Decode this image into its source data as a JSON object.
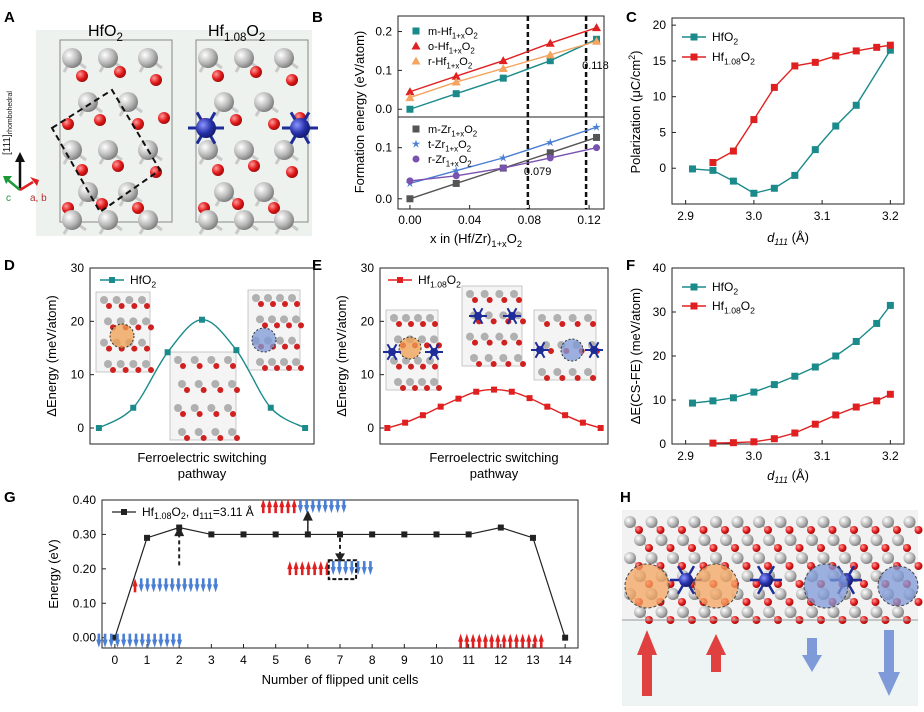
{
  "colors": {
    "teal": "#1a8a8a",
    "red": "#e02020",
    "orange": "#f4a460",
    "gray": "#555555",
    "blue": "#4a7fd4",
    "purple": "#7a52b0",
    "navy": "#1e2c9a",
    "rhfo": "#f0a050",
    "dash": "#000000"
  },
  "panel_letters": {
    "a": "A",
    "b": "B",
    "c": "C",
    "d": "D",
    "e": "E",
    "f": "F",
    "g": "G",
    "h": "H"
  },
  "panel_a": {
    "title_left": "HfO2",
    "title_right": "Hf1.08O2",
    "axis_label": "[111]rhombohedral",
    "axis_c": "c",
    "axis_ab": "a, b"
  },
  "panel_d_legend": "HfO2",
  "panel_e_legend": "Hf1.08O2",
  "chart_data": [
    {
      "id": "B",
      "type": "scatter",
      "xlabel": "x in (Hf/Zr)1+xO2",
      "ylabel": "Formation energy (eV/atom)",
      "x_ticks": [
        "0.00",
        "0.04",
        "0.08",
        "0.12"
      ],
      "top_subplot": {
        "ylim": [
          -0.02,
          0.24
        ],
        "y_ticks": [
          "0.0",
          "0.1",
          "0.2"
        ],
        "series": [
          {
            "name": "m-Hf1+xO2",
            "marker": "square",
            "color": "#1a8a8a",
            "x": [
              0,
              0.031,
              0.0625,
              0.094,
              0.125
            ],
            "y": [
              0.0,
              0.04,
              0.08,
              0.125,
              0.18
            ]
          },
          {
            "name": "o-Hf1+xO2",
            "marker": "triangle",
            "color": "#e02020",
            "x": [
              0,
              0.031,
              0.0625,
              0.094,
              0.125
            ],
            "y": [
              0.045,
              0.085,
              0.125,
              0.17,
              0.21
            ]
          },
          {
            "name": "r-Hf1+xO2",
            "marker": "triangle",
            "color": "#f4a460",
            "x": [
              0,
              0.031,
              0.0625,
              0.094,
              0.125
            ],
            "y": [
              0.03,
              0.07,
              0.105,
              0.14,
              0.175
            ]
          }
        ],
        "vline": {
          "x": 0.118,
          "label": "0.118"
        }
      },
      "bottom_subplot": {
        "ylim": [
          -0.02,
          0.16
        ],
        "y_ticks": [
          "0.0",
          "0.1"
        ],
        "series": [
          {
            "name": "m-Zr1+xO2",
            "marker": "square",
            "color": "#555555",
            "x": [
              0,
              0.031,
              0.0625,
              0.094,
              0.125
            ],
            "y": [
              0.0,
              0.03,
              0.06,
              0.09,
              0.12
            ]
          },
          {
            "name": "t-Zr1+xO2",
            "marker": "star",
            "color": "#4a7fd4",
            "x": [
              0,
              0.031,
              0.0625,
              0.094,
              0.125
            ],
            "y": [
              0.03,
              0.055,
              0.08,
              0.11,
              0.14
            ]
          },
          {
            "name": "r-Zr1+xO2",
            "marker": "circle",
            "color": "#7a52b0",
            "x": [
              0,
              0.031,
              0.0625,
              0.094,
              0.125
            ],
            "y": [
              0.035,
              0.045,
              0.06,
              0.08,
              0.1
            ]
          }
        ],
        "vline": {
          "x": 0.079,
          "label": "0.079"
        }
      }
    },
    {
      "id": "C",
      "type": "line",
      "xlabel": "d111 (Å)",
      "ylabel": "Polarization (μC/cm2)",
      "xlim": [
        2.88,
        3.22
      ],
      "ylim": [
        -5,
        21
      ],
      "x_ticks": [
        "2.9",
        "3.0",
        "3.1",
        "3.2"
      ],
      "y_ticks": [
        "0",
        "5",
        "10",
        "15",
        "20"
      ],
      "series": [
        {
          "name": "HfO2",
          "marker": "square",
          "color": "#1a8a8a",
          "x": [
            2.91,
            2.94,
            2.97,
            3.0,
            3.03,
            3.06,
            3.09,
            3.12,
            3.15,
            3.2
          ],
          "y": [
            -0.1,
            -0.3,
            -1.8,
            -3.5,
            -2.8,
            -1.0,
            2.6,
            5.9,
            8.8,
            16.5
          ]
        },
        {
          "name": "Hf1.08O2",
          "marker": "square",
          "color": "#e02020",
          "x": [
            2.94,
            2.97,
            3.0,
            3.03,
            3.06,
            3.09,
            3.12,
            3.15,
            3.18,
            3.2
          ],
          "y": [
            0.8,
            2.4,
            6.8,
            11.3,
            14.3,
            14.8,
            15.7,
            16.4,
            16.9,
            17.2
          ]
        }
      ]
    },
    {
      "id": "D",
      "type": "line",
      "xlabel": "Ferroelectric switching pathway",
      "ylabel": "ΔEnergy (meV/atom)",
      "ylim": [
        -3,
        30
      ],
      "y_ticks": [
        "0",
        "10",
        "20",
        "30"
      ],
      "series": [
        {
          "name": "HfO2",
          "marker": "square",
          "color": "#1a8a8a",
          "x": [
            0,
            1,
            2,
            3,
            4,
            5,
            6
          ],
          "y": [
            0,
            3.8,
            14.2,
            20.3,
            14.6,
            3.8,
            0
          ]
        }
      ]
    },
    {
      "id": "E",
      "type": "line",
      "xlabel": "Ferroelectric switching pathway",
      "ylabel": "ΔEnergy (meV/atom)",
      "ylim": [
        -3,
        30
      ],
      "y_ticks": [
        "0",
        "10",
        "20",
        "30"
      ],
      "series": [
        {
          "name": "Hf1.08O2",
          "marker": "square",
          "color": "#e02020",
          "x": [
            0,
            1,
            2,
            3,
            4,
            5,
            6,
            7,
            8,
            9,
            10,
            11,
            12
          ],
          "y": [
            0,
            1.0,
            2.4,
            4.0,
            5.5,
            6.8,
            7.2,
            6.8,
            5.6,
            4.0,
            2.4,
            1.0,
            0
          ]
        }
      ]
    },
    {
      "id": "F",
      "type": "line",
      "xlabel": "d111 (Å)",
      "ylabel": "ΔE(CS-FE) (meV/atom)",
      "xlim": [
        2.88,
        3.22
      ],
      "ylim": [
        0,
        40
      ],
      "x_ticks": [
        "2.9",
        "3.0",
        "3.1",
        "3.2"
      ],
      "y_ticks": [
        "0",
        "10",
        "20",
        "30",
        "40"
      ],
      "series": [
        {
          "name": "HfO2",
          "marker": "square",
          "color": "#1a8a8a",
          "x": [
            2.91,
            2.94,
            2.97,
            3.0,
            3.03,
            3.06,
            3.09,
            3.12,
            3.15,
            3.18,
            3.2
          ],
          "y": [
            9.3,
            9.8,
            10.5,
            11.8,
            13.5,
            15.4,
            17.5,
            20.0,
            23.3,
            27.4,
            31.5
          ]
        },
        {
          "name": "Hf1.08O2",
          "marker": "square",
          "color": "#e02020",
          "x": [
            2.94,
            2.97,
            3.0,
            3.03,
            3.06,
            3.09,
            3.12,
            3.15,
            3.18,
            3.2
          ],
          "y": [
            0.2,
            0.3,
            0.5,
            1.2,
            2.5,
            4.5,
            6.6,
            8.4,
            9.8,
            11.3
          ]
        }
      ]
    },
    {
      "id": "G",
      "type": "line",
      "xlabel": "Number of flipped unit cells",
      "ylabel": "Energy (eV)",
      "xlim": [
        -0.4,
        14.4
      ],
      "ylim": [
        -0.03,
        0.4
      ],
      "x_ticks": [
        "0",
        "1",
        "2",
        "3",
        "4",
        "5",
        "6",
        "7",
        "8",
        "9",
        "10",
        "11",
        "12",
        "13",
        "14"
      ],
      "y_ticks": [
        "0.00",
        "0.10",
        "0.20",
        "0.30",
        "0.40"
      ],
      "series": [
        {
          "name": "Hf1.08O2, d111=3.11 Å",
          "marker": "square",
          "color": "#222222",
          "x": [
            0,
            1,
            2,
            3,
            4,
            5,
            6,
            7,
            8,
            9,
            10,
            11,
            12,
            13,
            14
          ],
          "y": [
            0.0,
            0.29,
            0.32,
            0.3,
            0.3,
            0.3,
            0.3,
            0.3,
            0.3,
            0.3,
            0.3,
            0.3,
            0.32,
            0.29,
            0.0
          ]
        }
      ]
    }
  ]
}
